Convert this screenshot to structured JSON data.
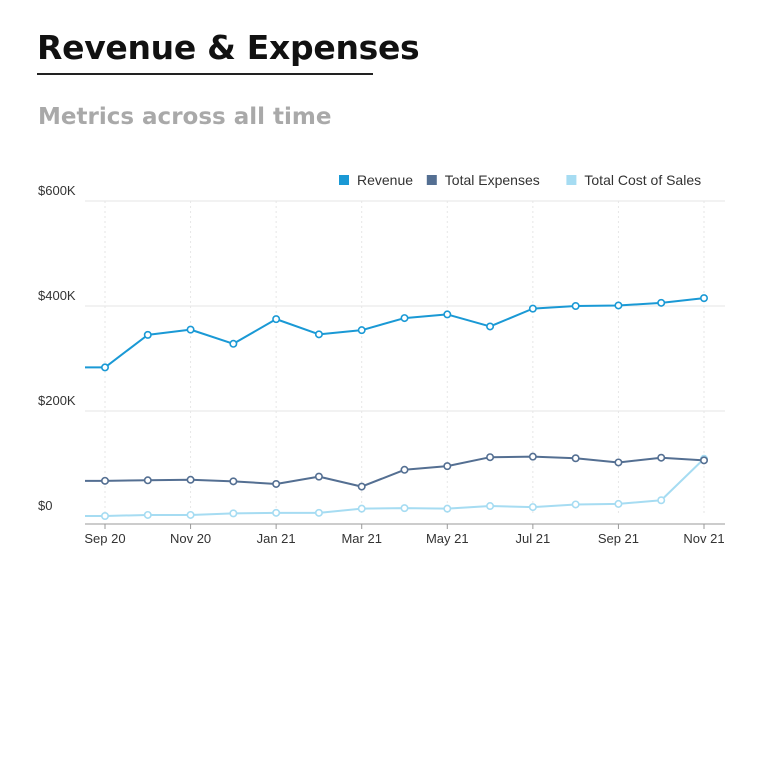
{
  "header": {
    "title": "Revenue & Expenses",
    "subtitle": "Metrics across all time"
  },
  "colors": {
    "revenue": "#1a99d5",
    "total_expenses": "#546f92",
    "total_cost_of_sales": "#a6dcf2",
    "grid": "#e6e6e6",
    "axis": "#999999"
  },
  "chart_data": {
    "type": "line",
    "title": "",
    "xlabel": "",
    "ylabel": "",
    "ylim": [
      0,
      600000
    ],
    "y_ticks": [
      {
        "value": 0,
        "label": "$0"
      },
      {
        "value": 200000,
        "label": "$200K"
      },
      {
        "value": 400000,
        "label": "$400K"
      },
      {
        "value": 600000,
        "label": "$600K"
      }
    ],
    "x": [
      "Sep 20",
      "Oct 20",
      "Nov 20",
      "Dec 20",
      "Jan 21",
      "Feb 21",
      "Mar 21",
      "Apr 21",
      "May 21",
      "Jun 21",
      "Jul 21",
      "Aug 21",
      "Sep 21",
      "Oct 21",
      "Nov 21"
    ],
    "x_tick_labels": [
      "Sep 20",
      "Nov 20",
      "Jan 21",
      "Mar 21",
      "May 21",
      "Jul 21",
      "Sep 21",
      "Nov 21"
    ],
    "grid": true,
    "legend_position": "top-right",
    "series": [
      {
        "name": "Revenue",
        "color_key": "revenue",
        "values": [
          283000,
          345000,
          355000,
          328000,
          375000,
          346000,
          354000,
          377000,
          384000,
          361000,
          395000,
          400000,
          401000,
          406000,
          415000
        ]
      },
      {
        "name": "Total Expenses",
        "color_key": "total_expenses",
        "values": [
          67000,
          68000,
          69000,
          66000,
          61000,
          75000,
          56000,
          88000,
          95000,
          112000,
          113000,
          110000,
          102000,
          111000,
          106000
        ]
      },
      {
        "name": "Total Cost of Sales",
        "color_key": "total_cost_of_sales",
        "values": [
          0,
          2000,
          2000,
          5000,
          6000,
          6000,
          14000,
          15000,
          14000,
          19000,
          17000,
          22000,
          23000,
          30000,
          109000
        ]
      }
    ]
  }
}
